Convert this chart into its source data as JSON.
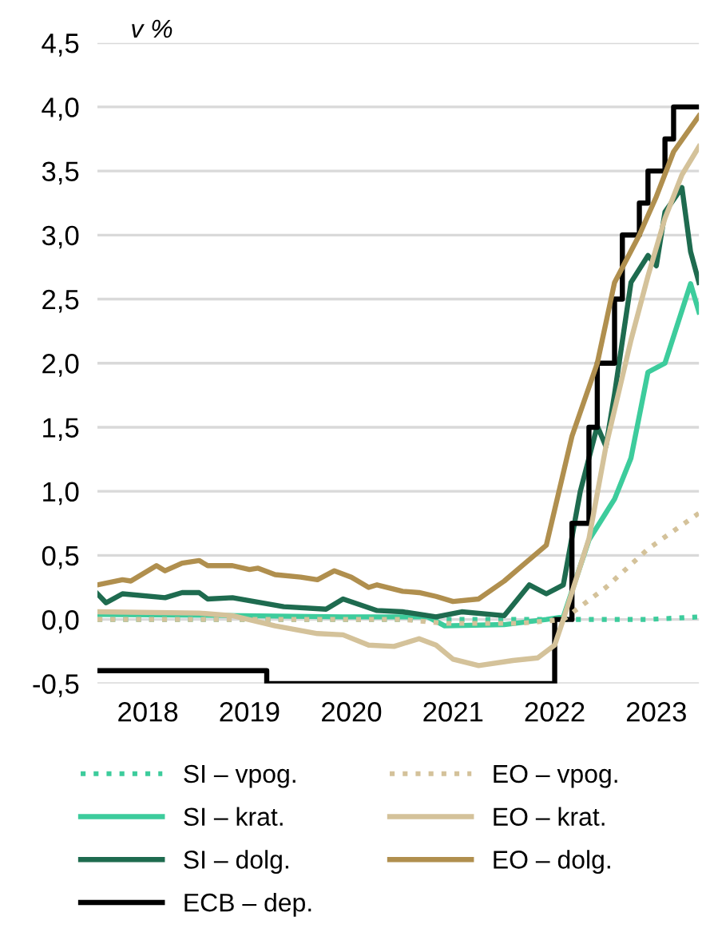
{
  "chart_data": {
    "type": "line",
    "ylabel": "v %",
    "xlim": [
      "2018-01",
      "2023-12"
    ],
    "xticks": [
      {
        "value": "2018-07",
        "label": "2018"
      },
      {
        "value": "2019-07",
        "label": "2019"
      },
      {
        "value": "2020-07",
        "label": "2020"
      },
      {
        "value": "2021-07",
        "label": "2021"
      },
      {
        "value": "2022-07",
        "label": "2022"
      },
      {
        "value": "2023-07",
        "label": "2023"
      }
    ],
    "ylim": [
      -0.5,
      4.5
    ],
    "yticks": [
      {
        "value": -0.5,
        "label": "-0,5"
      },
      {
        "value": 0,
        "label": "0,0"
      },
      {
        "value": 0.5,
        "label": "0,5"
      },
      {
        "value": 1,
        "label": "1,0"
      },
      {
        "value": 1.5,
        "label": "1,5"
      },
      {
        "value": 2,
        "label": "2,0"
      },
      {
        "value": 2.5,
        "label": "2,5"
      },
      {
        "value": 3,
        "label": "3,0"
      },
      {
        "value": 3.5,
        "label": "3,5"
      },
      {
        "value": 4,
        "label": "4,0"
      },
      {
        "value": 4.5,
        "label": "4,5"
      }
    ],
    "grid": "y",
    "legend": "bottom",
    "series": [
      {
        "name": "SI – vpog.",
        "color": "#3dcc9c",
        "line_style": "dotted",
        "x": [
          "2018-01",
          "2023-06",
          "2023-12"
        ],
        "values": [
          0.0,
          0.0,
          0.02
        ]
      },
      {
        "name": "SI – krat.",
        "color": "#3dcc9c",
        "x": [
          "2018-01",
          "2019-06",
          "2020-06",
          "2021-04",
          "2021-06",
          "2022-01",
          "2022-06",
          "2022-08",
          "2022-11",
          "2023-02",
          "2023-04",
          "2023-06",
          "2023-08",
          "2023-11",
          "2023-12"
        ],
        "values": [
          0.04,
          0.03,
          0.02,
          0.02,
          -0.05,
          -0.04,
          0.0,
          0.02,
          0.62,
          0.94,
          1.26,
          1.93,
          2.0,
          2.62,
          2.4
        ]
      },
      {
        "name": "SI – dolg.",
        "color": "#1e6b4f",
        "x": [
          "2018-01",
          "2018-02",
          "2018-04",
          "2018-09",
          "2018-11",
          "2019-01",
          "2019-02",
          "2019-05",
          "2019-11",
          "2020-04",
          "2020-06",
          "2020-10",
          "2021-01",
          "2021-05",
          "2021-08",
          "2022-01",
          "2022-04",
          "2022-06",
          "2022-08",
          "2022-10",
          "2022-12",
          "2023-01",
          "2023-02",
          "2023-04",
          "2023-06",
          "2023-07",
          "2023-08",
          "2023-10",
          "2023-11",
          "2023-12"
        ],
        "values": [
          0.2,
          0.13,
          0.2,
          0.17,
          0.21,
          0.21,
          0.16,
          0.17,
          0.1,
          0.08,
          0.16,
          0.07,
          0.06,
          0.02,
          0.06,
          0.03,
          0.27,
          0.2,
          0.27,
          1.0,
          1.51,
          1.35,
          1.76,
          2.63,
          2.84,
          2.76,
          3.18,
          3.37,
          2.87,
          2.63
        ]
      },
      {
        "name": "ECB – dep.",
        "color": "#000000",
        "type": "step",
        "x": [
          "2018-01",
          "2019-09",
          "2022-07",
          "2022-09",
          "2022-11",
          "2022-12",
          "2023-02",
          "2023-03",
          "2023-05",
          "2023-06",
          "2023-08",
          "2023-09",
          "2023-12"
        ],
        "values": [
          -0.4,
          -0.5,
          0.0,
          0.75,
          1.5,
          2.0,
          2.5,
          3.0,
          3.25,
          3.5,
          3.75,
          4.0,
          4.0
        ]
      },
      {
        "name": "EO – vpog.",
        "color": "#d4c29a",
        "line_style": "dotted",
        "x": [
          "2018-01",
          "2021-01",
          "2021-06",
          "2022-03",
          "2022-08",
          "2023-01",
          "2023-06",
          "2023-12"
        ],
        "values": [
          0.0,
          0.0,
          -0.03,
          -0.03,
          0.0,
          0.25,
          0.55,
          0.83
        ]
      },
      {
        "name": "EO – krat.",
        "color": "#d4c29a",
        "x": [
          "2018-01",
          "2019-01",
          "2019-05",
          "2019-10",
          "2020-03",
          "2020-06",
          "2020-09",
          "2020-12",
          "2021-03",
          "2021-05",
          "2021-07",
          "2021-10",
          "2022-02",
          "2022-05",
          "2022-07",
          "2022-08",
          "2022-11",
          "2023-01",
          "2023-04",
          "2023-06",
          "2023-08",
          "2023-10",
          "2023-12"
        ],
        "values": [
          0.06,
          0.05,
          0.03,
          -0.05,
          -0.11,
          -0.12,
          -0.2,
          -0.21,
          -0.15,
          -0.2,
          -0.31,
          -0.36,
          -0.32,
          -0.3,
          -0.2,
          0.0,
          0.63,
          1.35,
          2.18,
          2.68,
          3.13,
          3.47,
          3.69
        ]
      },
      {
        "name": "EO – dolg.",
        "color": "#b08f4e",
        "x": [
          "2018-01",
          "2018-04",
          "2018-05",
          "2018-07",
          "2018-08",
          "2018-09",
          "2018-11",
          "2019-01",
          "2019-02",
          "2019-05",
          "2019-07",
          "2019-08",
          "2019-10",
          "2020-01",
          "2020-03",
          "2020-05",
          "2020-07",
          "2020-09",
          "2020-10",
          "2021-01",
          "2021-03",
          "2021-05",
          "2021-07",
          "2021-10",
          "2022-01",
          "2022-03",
          "2022-06",
          "2022-09",
          "2022-12",
          "2023-02",
          "2023-05",
          "2023-07",
          "2023-09",
          "2023-12"
        ],
        "values": [
          0.27,
          0.31,
          0.3,
          0.38,
          0.42,
          0.38,
          0.44,
          0.46,
          0.42,
          0.42,
          0.39,
          0.4,
          0.35,
          0.33,
          0.31,
          0.38,
          0.33,
          0.25,
          0.27,
          0.22,
          0.21,
          0.18,
          0.14,
          0.16,
          0.3,
          0.41,
          0.58,
          1.43,
          2.0,
          2.63,
          3.0,
          3.3,
          3.65,
          3.93
        ]
      }
    ]
  }
}
